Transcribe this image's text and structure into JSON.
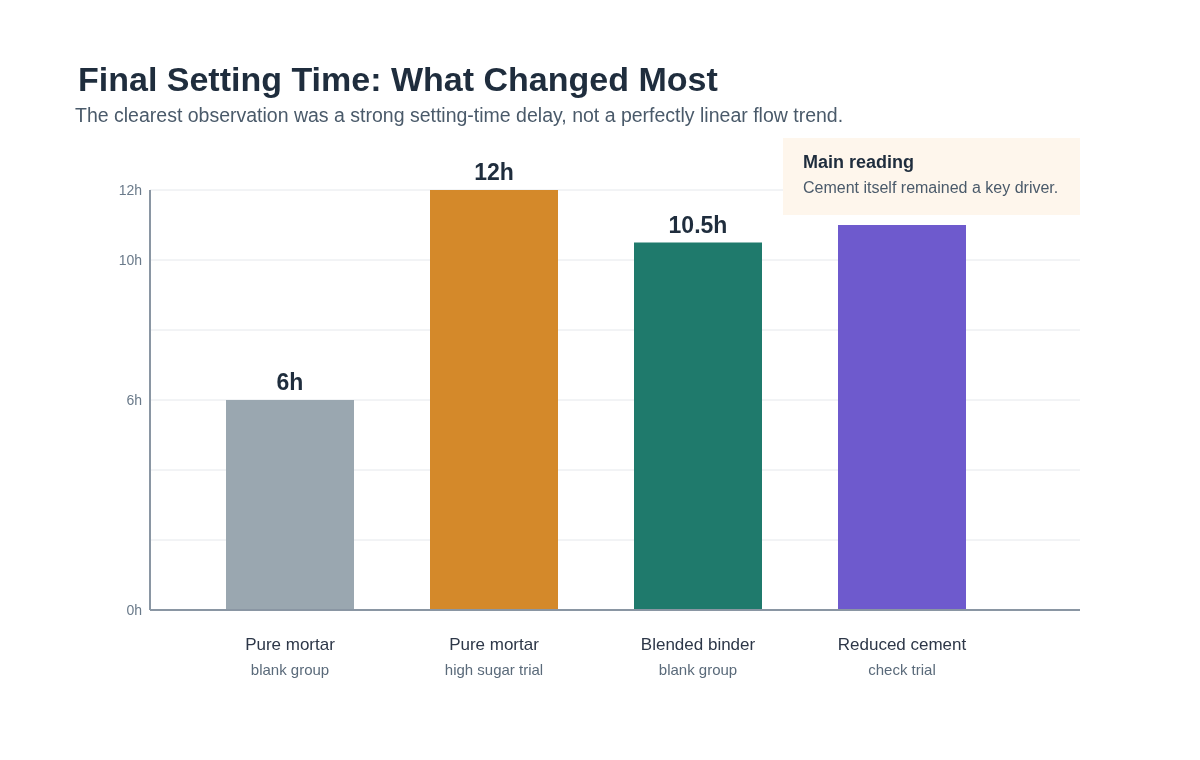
{
  "chart_data": {
    "type": "bar",
    "title": "Final Setting Time: What Changed Most",
    "subtitle": "The clearest observation was a strong setting-time delay, not a perfectly linear flow trend.",
    "categories": [
      "Pure mortar\nblank group",
      "Pure mortar\nhigh sugar trial",
      "Blended binder\nblank group",
      "Reduced cement\ncheck trial"
    ],
    "values": [
      6,
      12,
      10.5,
      11
    ],
    "colors": [
      "#9aa7b0",
      "#d4892a",
      "#1f7a6c",
      "#6e5acd"
    ],
    "value_labels": [
      "6h",
      "12h",
      "10.5h",
      null
    ],
    "ylim": [
      0,
      12
    ],
    "yticks": [
      {
        "value": 0,
        "label": "0h"
      },
      {
        "value": 2,
        "label": null
      },
      {
        "value": 4,
        "label": null
      },
      {
        "value": 6,
        "label": "6h"
      },
      {
        "value": 8,
        "label": null
      },
      {
        "value": 10,
        "label": "10h"
      },
      {
        "value": 12,
        "label": "12h"
      }
    ],
    "grid": "y",
    "annotations": [
      "Main reading",
      "Cement itself remained a key driver."
    ]
  }
}
